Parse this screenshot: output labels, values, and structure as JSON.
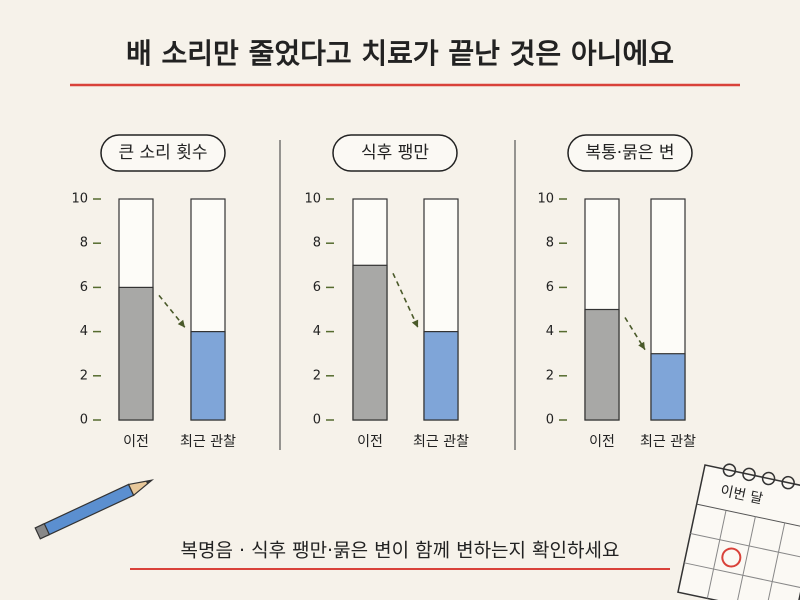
{
  "title": "배 소리만 줄었다고 치료가 끝난 것은 아니에요",
  "chart_data": [
    {
      "type": "bar",
      "title": "큰 소리 횟수",
      "categories": [
        "이전",
        "최근 관찰"
      ],
      "values": [
        6,
        4
      ],
      "colors": [
        "#a8a8a6",
        "#7fa5d8"
      ],
      "ylim": [
        0,
        10
      ],
      "yticks": [
        0,
        2,
        4,
        6,
        8,
        10
      ]
    },
    {
      "type": "bar",
      "title": "식후 팽만",
      "categories": [
        "이전",
        "최근 관찰"
      ],
      "values": [
        7,
        4
      ],
      "colors": [
        "#a8a8a6",
        "#7fa5d8"
      ],
      "ylim": [
        0,
        10
      ],
      "yticks": [
        0,
        2,
        4,
        6,
        8,
        10
      ]
    },
    {
      "type": "bar",
      "title": "복통·묽은 변",
      "categories": [
        "이전",
        "최근 관찰"
      ],
      "values": [
        5,
        3
      ],
      "colors": [
        "#a8a8a6",
        "#7fa5d8"
      ],
      "ylim": [
        0,
        10
      ],
      "yticks": [
        0,
        2,
        4,
        6,
        8,
        10
      ]
    }
  ],
  "footer": "복명음 · 식후 팽만·묽은 변이 함께 변하는지 확인하세요",
  "calendar_label": "이번 달"
}
